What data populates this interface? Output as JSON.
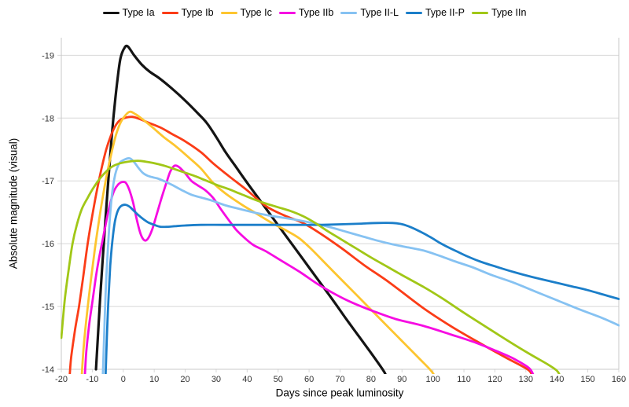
{
  "chart_data": {
    "type": "line",
    "title": "",
    "xlabel": "Days since peak luminosity",
    "ylabel": "Absolute magnitude (visual)",
    "xlim": [
      -20,
      160
    ],
    "ylim_top": -19.28,
    "ylim_bottom": -14,
    "x_ticks": [
      -20,
      -10,
      0,
      10,
      20,
      30,
      40,
      50,
      60,
      70,
      80,
      90,
      100,
      110,
      120,
      130,
      140,
      150,
      160
    ],
    "y_ticks": [
      -19,
      -18,
      -17,
      -16,
      -15,
      -14
    ],
    "y_axis_inverted_magnitude_scale": true,
    "grid": "horizontal-only",
    "legend_position": "top-center",
    "background": "#ffffff",
    "grid_color": "#d8d8d8",
    "axis_color": "#c8c8c8",
    "tick_label_color": "#333333",
    "series": [
      {
        "name": "Type Ia",
        "color": "#141414",
        "width": 3.2,
        "points": [
          [
            -8.8,
            -14
          ],
          [
            -7.5,
            -15.1
          ],
          [
            -6.3,
            -16.0
          ],
          [
            -5.0,
            -16.9
          ],
          [
            -3.9,
            -17.6
          ],
          [
            -2.9,
            -18.15
          ],
          [
            -1.9,
            -18.6
          ],
          [
            -0.9,
            -18.95
          ],
          [
            0.4,
            -19.12
          ],
          [
            1.5,
            -19.14
          ],
          [
            3.5,
            -19.0
          ],
          [
            6,
            -18.85
          ],
          [
            8.5,
            -18.74
          ],
          [
            11.5,
            -18.64
          ],
          [
            15,
            -18.5
          ],
          [
            18,
            -18.37
          ],
          [
            21,
            -18.23
          ],
          [
            24,
            -18.08
          ],
          [
            27,
            -17.92
          ],
          [
            30,
            -17.7
          ],
          [
            33,
            -17.46
          ],
          [
            36,
            -17.25
          ],
          [
            40,
            -16.97
          ],
          [
            44,
            -16.7
          ],
          [
            48,
            -16.43
          ],
          [
            52,
            -16.16
          ],
          [
            56,
            -15.89
          ],
          [
            60,
            -15.62
          ],
          [
            64,
            -15.35
          ],
          [
            68,
            -15.08
          ],
          [
            72,
            -14.8
          ],
          [
            76,
            -14.53
          ],
          [
            80,
            -14.26
          ],
          [
            84,
            -13.98
          ],
          [
            84.8,
            -13.9
          ]
        ]
      },
      {
        "name": "Type Ib",
        "color": "#fb3c17",
        "width": 2.8,
        "points": [
          [
            -17.3,
            -13.9
          ],
          [
            -16.8,
            -14.2
          ],
          [
            -15.5,
            -14.65
          ],
          [
            -14.3,
            -15.0
          ],
          [
            -13,
            -15.45
          ],
          [
            -11.5,
            -16.0
          ],
          [
            -10,
            -16.45
          ],
          [
            -8.5,
            -16.85
          ],
          [
            -7,
            -17.2
          ],
          [
            -5.5,
            -17.5
          ],
          [
            -4,
            -17.72
          ],
          [
            -2.5,
            -17.88
          ],
          [
            -1,
            -17.97
          ],
          [
            1,
            -18.01
          ],
          [
            3,
            -18.02
          ],
          [
            5,
            -17.99
          ],
          [
            8,
            -17.93
          ],
          [
            12,
            -17.85
          ],
          [
            16,
            -17.74
          ],
          [
            20,
            -17.63
          ],
          [
            25,
            -17.46
          ],
          [
            29,
            -17.28
          ],
          [
            34,
            -17.08
          ],
          [
            40,
            -16.85
          ],
          [
            46,
            -16.6
          ],
          [
            52,
            -16.45
          ],
          [
            58,
            -16.33
          ],
          [
            64,
            -16.15
          ],
          [
            71,
            -15.91
          ],
          [
            78,
            -15.65
          ],
          [
            86,
            -15.38
          ],
          [
            97,
            -14.97
          ],
          [
            106,
            -14.68
          ],
          [
            115,
            -14.42
          ],
          [
            123,
            -14.2
          ],
          [
            130.5,
            -14.0
          ],
          [
            132,
            -13.9
          ]
        ]
      },
      {
        "name": "Type Ic",
        "color": "#fdc52f",
        "width": 2.8,
        "points": [
          [
            -13.4,
            -13.9
          ],
          [
            -12.8,
            -14.35
          ],
          [
            -11.8,
            -14.85
          ],
          [
            -10.5,
            -15.4
          ],
          [
            -9.2,
            -15.9
          ],
          [
            -7.9,
            -16.35
          ],
          [
            -6.6,
            -16.75
          ],
          [
            -5.3,
            -17.1
          ],
          [
            -4,
            -17.4
          ],
          [
            -2.7,
            -17.67
          ],
          [
            -1.4,
            -17.87
          ],
          [
            0,
            -18.0
          ],
          [
            2,
            -18.1
          ],
          [
            4,
            -18.06
          ],
          [
            6.5,
            -17.97
          ],
          [
            9.5,
            -17.85
          ],
          [
            13,
            -17.7
          ],
          [
            17,
            -17.55
          ],
          [
            21,
            -17.38
          ],
          [
            25,
            -17.2
          ],
          [
            29,
            -16.97
          ],
          [
            33,
            -16.8
          ],
          [
            38,
            -16.63
          ],
          [
            43,
            -16.48
          ],
          [
            48,
            -16.33
          ],
          [
            53,
            -16.2
          ],
          [
            57,
            -16.08
          ],
          [
            61,
            -15.9
          ],
          [
            66,
            -15.65
          ],
          [
            71,
            -15.4
          ],
          [
            77,
            -15.1
          ],
          [
            83,
            -14.8
          ],
          [
            89,
            -14.5
          ],
          [
            95,
            -14.2
          ],
          [
            99,
            -14.0
          ],
          [
            100.5,
            -13.9
          ]
        ]
      },
      {
        "name": "Type IIb",
        "color": "#f60ce2",
        "width": 2.8,
        "points": [
          [
            -12.4,
            -13.9
          ],
          [
            -11.9,
            -14.3
          ],
          [
            -10.9,
            -14.75
          ],
          [
            -9.9,
            -15.1
          ],
          [
            -8.9,
            -15.45
          ],
          [
            -7.9,
            -15.75
          ],
          [
            -6.9,
            -16.0
          ],
          [
            -5.9,
            -16.25
          ],
          [
            -4.9,
            -16.5
          ],
          [
            -3.9,
            -16.7
          ],
          [
            -2.9,
            -16.85
          ],
          [
            -1.7,
            -16.94
          ],
          [
            -0.5,
            -16.98
          ],
          [
            0.8,
            -16.97
          ],
          [
            2,
            -16.85
          ],
          [
            3.2,
            -16.65
          ],
          [
            4.3,
            -16.4
          ],
          [
            5.3,
            -16.2
          ],
          [
            6.2,
            -16.09
          ],
          [
            7.2,
            -16.05
          ],
          [
            8.2,
            -16.1
          ],
          [
            9.5,
            -16.25
          ],
          [
            11,
            -16.5
          ],
          [
            12.5,
            -16.75
          ],
          [
            14,
            -16.98
          ],
          [
            15.2,
            -17.15
          ],
          [
            16.5,
            -17.24
          ],
          [
            18,
            -17.22
          ],
          [
            20,
            -17.12
          ],
          [
            22,
            -17.0
          ],
          [
            24,
            -16.93
          ],
          [
            26.5,
            -16.85
          ],
          [
            29,
            -16.73
          ],
          [
            31.5,
            -16.55
          ],
          [
            34,
            -16.38
          ],
          [
            36.5,
            -16.22
          ],
          [
            39,
            -16.1
          ],
          [
            42,
            -15.98
          ],
          [
            46,
            -15.88
          ],
          [
            51,
            -15.73
          ],
          [
            57,
            -15.55
          ],
          [
            63,
            -15.35
          ],
          [
            69,
            -15.18
          ],
          [
            74,
            -15.06
          ],
          [
            80,
            -14.94
          ],
          [
            88,
            -14.8
          ],
          [
            97,
            -14.69
          ],
          [
            106,
            -14.55
          ],
          [
            114,
            -14.42
          ],
          [
            121,
            -14.28
          ],
          [
            126,
            -14.17
          ],
          [
            131,
            -14.02
          ],
          [
            132.5,
            -13.9
          ]
        ]
      },
      {
        "name": "Type II-L",
        "color": "#86c2f2",
        "width": 2.8,
        "points": [
          [
            -6.6,
            -13.9
          ],
          [
            -6.2,
            -14.5
          ],
          [
            -5.7,
            -15.2
          ],
          [
            -5.1,
            -15.8
          ],
          [
            -4.4,
            -16.35
          ],
          [
            -3.6,
            -16.8
          ],
          [
            -2.6,
            -17.1
          ],
          [
            -1.4,
            -17.27
          ],
          [
            0,
            -17.33
          ],
          [
            2,
            -17.36
          ],
          [
            3.5,
            -17.3
          ],
          [
            5,
            -17.2
          ],
          [
            6.5,
            -17.12
          ],
          [
            8.5,
            -17.07
          ],
          [
            11,
            -17.04
          ],
          [
            13.5,
            -16.99
          ],
          [
            16,
            -16.93
          ],
          [
            19,
            -16.85
          ],
          [
            22,
            -16.78
          ],
          [
            25.5,
            -16.73
          ],
          [
            29,
            -16.68
          ],
          [
            33,
            -16.61
          ],
          [
            37,
            -16.56
          ],
          [
            42,
            -16.5
          ],
          [
            47,
            -16.45
          ],
          [
            52,
            -16.41
          ],
          [
            57,
            -16.37
          ],
          [
            62,
            -16.32
          ],
          [
            67,
            -16.26
          ],
          [
            72,
            -16.19
          ],
          [
            77,
            -16.12
          ],
          [
            82,
            -16.05
          ],
          [
            87,
            -15.99
          ],
          [
            92,
            -15.94
          ],
          [
            97,
            -15.89
          ],
          [
            102,
            -15.81
          ],
          [
            107,
            -15.72
          ],
          [
            113,
            -15.62
          ],
          [
            119,
            -15.5
          ],
          [
            126,
            -15.38
          ],
          [
            133,
            -15.24
          ],
          [
            140,
            -15.1
          ],
          [
            147,
            -14.96
          ],
          [
            154,
            -14.83
          ],
          [
            160,
            -14.7
          ]
        ]
      },
      {
        "name": "Type II-P",
        "color": "#1b7ec9",
        "width": 2.8,
        "points": [
          [
            -5.7,
            -13.9
          ],
          [
            -5.3,
            -14.5
          ],
          [
            -4.8,
            -15.1
          ],
          [
            -4.2,
            -15.65
          ],
          [
            -3.5,
            -16.05
          ],
          [
            -2.7,
            -16.35
          ],
          [
            -1.8,
            -16.52
          ],
          [
            -0.7,
            -16.6
          ],
          [
            0.7,
            -16.62
          ],
          [
            2,
            -16.59
          ],
          [
            3.5,
            -16.52
          ],
          [
            5,
            -16.45
          ],
          [
            6.5,
            -16.39
          ],
          [
            8,
            -16.34
          ],
          [
            10,
            -16.3
          ],
          [
            12,
            -16.27
          ],
          [
            14.5,
            -16.27
          ],
          [
            17,
            -16.28
          ],
          [
            20,
            -16.29
          ],
          [
            25,
            -16.3
          ],
          [
            32,
            -16.3
          ],
          [
            40,
            -16.3
          ],
          [
            48,
            -16.3
          ],
          [
            56,
            -16.3
          ],
          [
            64,
            -16.3
          ],
          [
            71,
            -16.31
          ],
          [
            77,
            -16.32
          ],
          [
            82,
            -16.33
          ],
          [
            87,
            -16.33
          ],
          [
            90,
            -16.31
          ],
          [
            93,
            -16.26
          ],
          [
            96,
            -16.19
          ],
          [
            99,
            -16.11
          ],
          [
            102,
            -16.02
          ],
          [
            105,
            -15.94
          ],
          [
            108,
            -15.87
          ],
          [
            111,
            -15.8
          ],
          [
            115,
            -15.72
          ],
          [
            120,
            -15.64
          ],
          [
            126,
            -15.55
          ],
          [
            132,
            -15.47
          ],
          [
            138,
            -15.4
          ],
          [
            144,
            -15.33
          ],
          [
            150,
            -15.26
          ],
          [
            155,
            -15.19
          ],
          [
            160,
            -15.12
          ]
        ]
      },
      {
        "name": "Type IIn",
        "color": "#a1c717",
        "width": 2.8,
        "points": [
          [
            -20,
            -14.5
          ],
          [
            -18.9,
            -15.1
          ],
          [
            -17.6,
            -15.6
          ],
          [
            -16.4,
            -16.0
          ],
          [
            -15,
            -16.3
          ],
          [
            -13.4,
            -16.55
          ],
          [
            -11.5,
            -16.73
          ],
          [
            -9.5,
            -16.9
          ],
          [
            -7.5,
            -17.04
          ],
          [
            -5.5,
            -17.15
          ],
          [
            -3.5,
            -17.23
          ],
          [
            -1,
            -17.28
          ],
          [
            2,
            -17.31
          ],
          [
            5,
            -17.32
          ],
          [
            8,
            -17.3
          ],
          [
            11,
            -17.27
          ],
          [
            14,
            -17.23
          ],
          [
            17,
            -17.18
          ],
          [
            20,
            -17.13
          ],
          [
            23.5,
            -17.07
          ],
          [
            27,
            -17.0
          ],
          [
            30.5,
            -16.93
          ],
          [
            34,
            -16.87
          ],
          [
            38,
            -16.79
          ],
          [
            42,
            -16.71
          ],
          [
            46,
            -16.64
          ],
          [
            50,
            -16.58
          ],
          [
            54,
            -16.52
          ],
          [
            58,
            -16.44
          ],
          [
            62,
            -16.33
          ],
          [
            66,
            -16.2
          ],
          [
            70,
            -16.08
          ],
          [
            75,
            -15.93
          ],
          [
            80,
            -15.78
          ],
          [
            85,
            -15.64
          ],
          [
            90,
            -15.5
          ],
          [
            97,
            -15.31
          ],
          [
            103,
            -15.13
          ],
          [
            110,
            -14.9
          ],
          [
            117,
            -14.68
          ],
          [
            124,
            -14.46
          ],
          [
            131,
            -14.25
          ],
          [
            137,
            -14.08
          ],
          [
            140,
            -13.98
          ],
          [
            141,
            -13.9
          ]
        ]
      }
    ]
  }
}
